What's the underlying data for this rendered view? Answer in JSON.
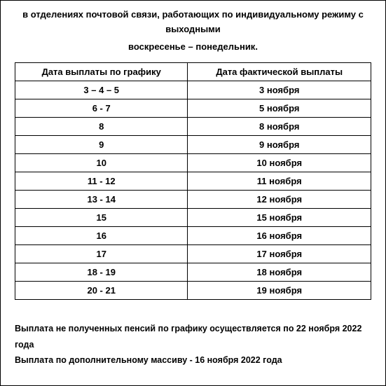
{
  "header": {
    "line1": "в отделениях почтовой связи, работающих по индивидуальному режиму с выходными",
    "line2": "воскресенье – понедельник."
  },
  "table": {
    "columns": [
      "Дата выплаты по графику",
      "Дата фактической выплаты"
    ],
    "rows": [
      [
        "3 – 4 – 5",
        "3 ноября"
      ],
      [
        "6 - 7",
        "5 ноября"
      ],
      [
        "8",
        "8 ноября"
      ],
      [
        "9",
        "9 ноября"
      ],
      [
        "10",
        "10 ноября"
      ],
      [
        "11 - 12",
        "11 ноября"
      ],
      [
        "13 - 14",
        "12 ноября"
      ],
      [
        "15",
        "15 ноября"
      ],
      [
        "16",
        "16 ноября"
      ],
      [
        "17",
        "17 ноября"
      ],
      [
        "18 - 19",
        "18 ноября"
      ],
      [
        "20 - 21",
        "19 ноября"
      ]
    ],
    "column_count": 2,
    "border_color": "#000000",
    "background_color": "#ffffff",
    "font_size": 13,
    "font_weight": "bold"
  },
  "footer": {
    "line1": "Выплата не полученных пенсий по графику осуществляется по 22 ноября 2022 года",
    "line2": "Выплата по дополнительному массиву - 16 ноября 2022 года"
  }
}
